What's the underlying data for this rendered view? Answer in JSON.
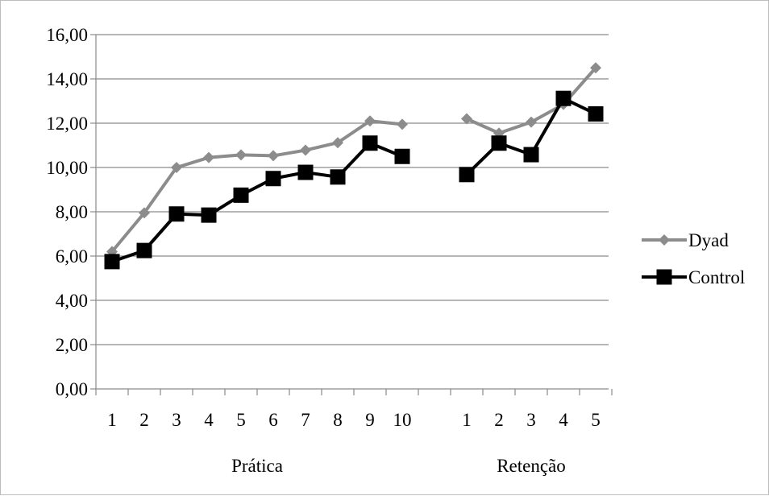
{
  "chart_data": {
    "type": "line",
    "groups": [
      {
        "label": "Prática",
        "categories": [
          "1",
          "2",
          "3",
          "4",
          "5",
          "6",
          "7",
          "8",
          "9",
          "10"
        ]
      },
      {
        "label": "Retenção",
        "categories": [
          "1",
          "2",
          "3",
          "4",
          "5"
        ]
      }
    ],
    "y_ticks": [
      "0,00",
      "2,00",
      "4,00",
      "6,00",
      "8,00",
      "10,00",
      "12,00",
      "14,00",
      "16,00"
    ],
    "ylim": [
      0,
      16
    ],
    "grid": true,
    "legend_position": "right",
    "series": [
      {
        "name": "Dyad",
        "color": "#8c8c8c",
        "marker": "diamond",
        "segments": [
          [
            6.2,
            7.95,
            10.0,
            10.45,
            10.57,
            10.53,
            10.78,
            11.12,
            12.1,
            11.95
          ],
          [
            12.2,
            11.55,
            12.05,
            12.85,
            14.5
          ]
        ]
      },
      {
        "name": "Control",
        "color": "#000000",
        "marker": "square",
        "segments": [
          [
            5.75,
            6.25,
            7.9,
            7.85,
            8.75,
            9.5,
            9.78,
            9.57,
            11.1,
            10.5
          ],
          [
            9.68,
            11.1,
            10.58,
            13.12,
            12.42
          ]
        ]
      }
    ]
  }
}
